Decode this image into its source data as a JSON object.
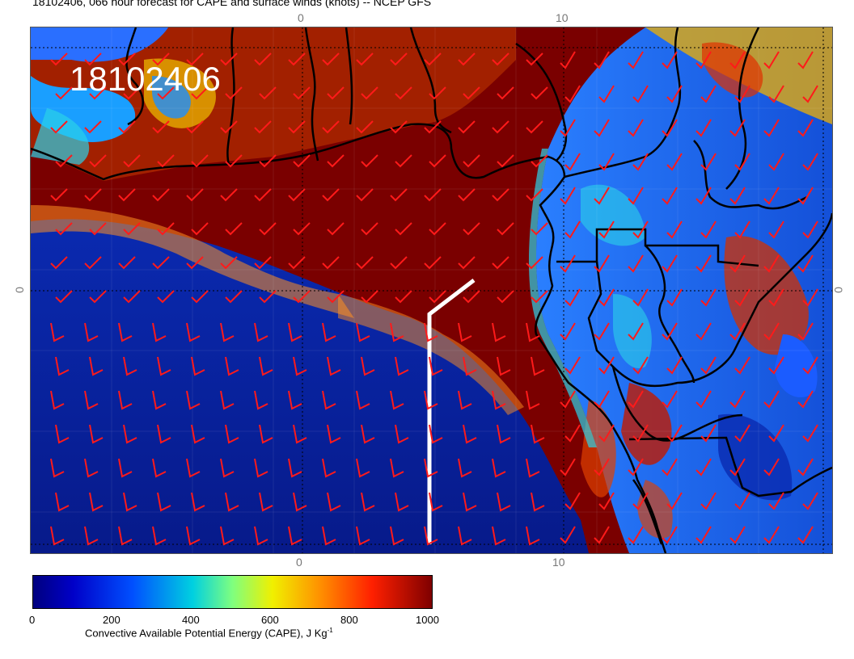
{
  "header": {
    "title": "18102406, 066 hour forecast for CAPE and surface winds (knots) -- NCEP GFS",
    "date_stamp": "18102406"
  },
  "axes": {
    "top_ticks": [
      "0",
      "10"
    ],
    "bottom_ticks": [
      "0",
      "10"
    ],
    "left_tick": "0",
    "right_tick": "0"
  },
  "colorbar": {
    "labels": [
      "0",
      "200",
      "400",
      "600",
      "800",
      "1000"
    ],
    "caption": "Convective Available Potential Energy (CAPE), J Kg",
    "caption_superscript": "-1",
    "colors": [
      "#00007f",
      "#0050ff",
      "#00d0e0",
      "#f0f000",
      "#ff9000",
      "#7f0000"
    ]
  },
  "map": {
    "colors": {
      "high_cape": "#7a0000",
      "low_cape": "#0a1a8f",
      "coastline": "#000000",
      "wind_barbs": "#ff1a1a",
      "cross_section_line": "#ffffff"
    }
  }
}
